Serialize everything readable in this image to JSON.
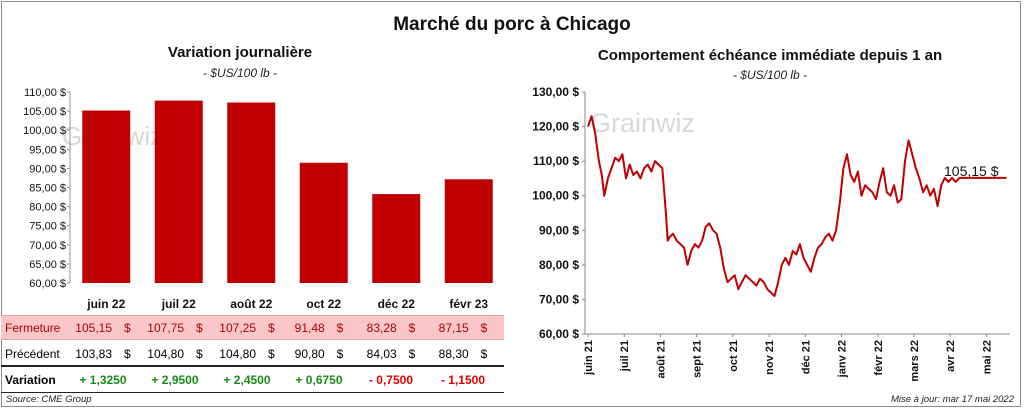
{
  "title": "Marché du porc à Chicago",
  "colors": {
    "bar": "#c00000",
    "line": "#c00000",
    "positive": "#1a8a1a",
    "negative": "#e00000",
    "close_row_bg": "#f9c7c7"
  },
  "left_chart": {
    "title": "Variation  journalière",
    "unit": "- $US/100 lb -",
    "watermark": "Grainwiz"
  },
  "right_chart": {
    "title": "Comportement  échéance  immédiate  depuis  1 an",
    "unit": "- $US/100 lb -",
    "callout": "105,15 $",
    "watermark": "Grainwiz"
  },
  "chart_data": [
    {
      "type": "bar",
      "title": "Variation journalière",
      "ylabel": "$US/100 lb",
      "categories": [
        "juin 22",
        "juil 22",
        "août 22",
        "oct 22",
        "déc 22",
        "févr 23"
      ],
      "values": [
        105.15,
        107.75,
        107.25,
        91.48,
        83.28,
        87.15
      ],
      "ylim": [
        60,
        110
      ],
      "yticks": [
        "110,00 $",
        "105,00 $",
        "100,00 $",
        "95,00 $",
        "90,00 $",
        "85,00 $",
        "80,00 $",
        "75,00 $",
        "70,00 $",
        "65,00 $",
        "60,00 $"
      ]
    },
    {
      "type": "line",
      "title": "Comportement échéance immédiate depuis 1 an",
      "ylabel": "$US/100 lb",
      "ylim": [
        60,
        130
      ],
      "yticks": [
        "130,00 $",
        "120,00 $",
        "110,00 $",
        "100,00 $",
        "90,00 $",
        "80,00 $",
        "70,00 $",
        "60,00 $"
      ],
      "xticks": [
        "juin 21",
        "juil 21",
        "août 21",
        "sept 21",
        "oct 21",
        "nov 21",
        "déc 21",
        "janv 22",
        "févr 22",
        "mars 22",
        "avr 22",
        "mai 22"
      ],
      "x_months": [
        0,
        0.1,
        0.2,
        0.3,
        0.38,
        0.45,
        0.55,
        0.65,
        0.75,
        0.85,
        0.95,
        1.05,
        1.15,
        1.25,
        1.35,
        1.45,
        1.55,
        1.65,
        1.75,
        1.85,
        1.95,
        2.05,
        2.15,
        2.2,
        2.25,
        2.35,
        2.45,
        2.55,
        2.65,
        2.75,
        2.85,
        2.95,
        3.05,
        3.15,
        3.25,
        3.35,
        3.45,
        3.55,
        3.65,
        3.75,
        3.85,
        3.95,
        4.05,
        4.15,
        4.25,
        4.35,
        4.45,
        4.55,
        4.65,
        4.75,
        4.85,
        4.95,
        5.05,
        5.15,
        5.25,
        5.35,
        5.45,
        5.55,
        5.65,
        5.75,
        5.85,
        5.95,
        6.05,
        6.15,
        6.25,
        6.35,
        6.45,
        6.55,
        6.65,
        6.75,
        6.85,
        6.95,
        7.05,
        7.15,
        7.25,
        7.35,
        7.45,
        7.55,
        7.65,
        7.75,
        7.85,
        7.95,
        8.05,
        8.15,
        8.25,
        8.35,
        8.45,
        8.55,
        8.65,
        8.75,
        8.85,
        8.95,
        9.05,
        9.15,
        9.25,
        9.35,
        9.45,
        9.55,
        9.65,
        9.75,
        9.85,
        9.95,
        10.05,
        10.15,
        10.25,
        10.35,
        10.45,
        10.55,
        10.65,
        10.75,
        10.85,
        10.95,
        11.05,
        11.15,
        11.25,
        11.35,
        11.45,
        11.55
      ],
      "values": [
        120,
        123,
        118,
        110,
        106,
        100,
        105,
        108,
        111,
        110,
        112,
        105,
        109,
        106,
        107,
        105,
        108,
        109,
        107,
        110,
        109,
        108,
        95,
        87,
        88,
        89,
        87,
        86,
        85,
        80,
        84,
        86,
        85,
        87,
        91,
        92,
        90,
        89,
        85,
        79,
        75,
        76,
        77,
        73,
        75,
        77,
        76,
        75,
        74,
        76,
        75,
        73,
        72,
        71,
        75,
        80,
        82,
        80,
        84,
        83,
        86,
        82,
        80,
        78,
        82,
        85,
        86,
        88,
        89,
        87,
        90,
        98,
        108,
        112,
        106,
        104,
        107,
        100,
        103,
        102,
        101,
        99,
        104,
        108,
        101,
        100,
        103,
        98,
        99,
        110,
        116,
        112,
        108,
        105,
        101,
        103,
        100,
        102,
        97,
        103,
        105.15,
        104,
        105.15,
        104,
        105.15,
        105.15,
        105.15,
        105.15,
        105.15,
        105.15,
        105.15,
        105.15,
        105.15,
        105.15,
        105.15,
        105.15,
        105.15,
        105.15
      ],
      "annotation": "105,15 $"
    }
  ],
  "table": {
    "rows": [
      {
        "label": "Fermeture",
        "values": [
          "105,15",
          "107,75",
          "107,25",
          "91,48",
          "83,28",
          "87,15"
        ],
        "unit": "$"
      },
      {
        "label": "Précédent",
        "values": [
          "103,83",
          "104,80",
          "104,80",
          "90,80",
          "84,03",
          "88,30"
        ],
        "unit": "$"
      },
      {
        "label": "Variation",
        "values": [
          "+ 1,3250",
          "+ 2,9500",
          "+ 2,4500",
          "+ 0,6750",
          "- 0,7500",
          "- 1,1500"
        ],
        "signs": [
          "pos",
          "pos",
          "pos",
          "pos",
          "neg",
          "neg"
        ]
      }
    ]
  },
  "footer": {
    "source": "Source: CME Group",
    "updated": "Mise à jour: mar 17 mai 2022"
  }
}
